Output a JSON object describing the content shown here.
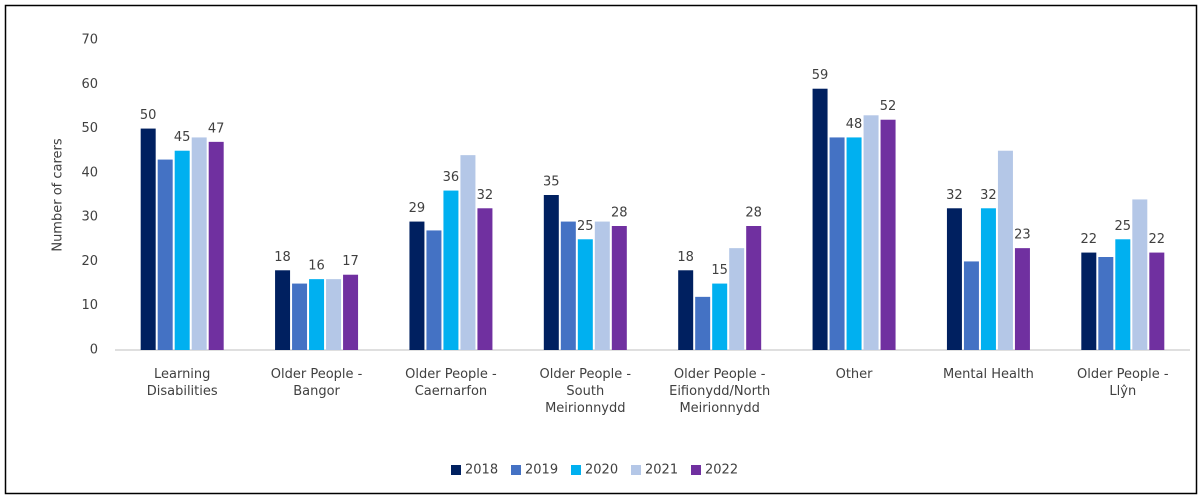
{
  "chart_data": {
    "type": "bar",
    "y_label": "Number of carers",
    "categories": [
      "Learning Disabilities",
      "Older People - Bangor",
      "Older People - Caernarfon",
      "Older People - South Meirionnydd",
      "Older People - Eifionydd/North Meirionnydd",
      "Other",
      "Mental Health",
      "Older People - Llŷn"
    ],
    "series": [
      {
        "name": "2018",
        "color": "#002060",
        "data_labels": true,
        "values": [
          50,
          18,
          29,
          35,
          18,
          59,
          32,
          22
        ]
      },
      {
        "name": "2019",
        "color": "#4472c4",
        "data_labels": false,
        "values": [
          43,
          15,
          27,
          29,
          12,
          48,
          20,
          21
        ]
      },
      {
        "name": "2020",
        "color": "#00b0f0",
        "data_labels": true,
        "values": [
          45,
          16,
          36,
          25,
          15,
          48,
          32,
          25
        ]
      },
      {
        "name": "2021",
        "color": "#b4c7e7",
        "data_labels": false,
        "values": [
          48,
          16,
          44,
          29,
          23,
          53,
          45,
          34
        ]
      },
      {
        "name": "2022",
        "color": "#7030a0",
        "data_labels": true,
        "values": [
          47,
          17,
          32,
          28,
          28,
          52,
          23,
          22
        ]
      }
    ],
    "ylim": [
      0,
      70
    ],
    "yticks": [
      0,
      10,
      20,
      30,
      40,
      50,
      60,
      70
    ],
    "grid": false,
    "legend": "bottom"
  }
}
